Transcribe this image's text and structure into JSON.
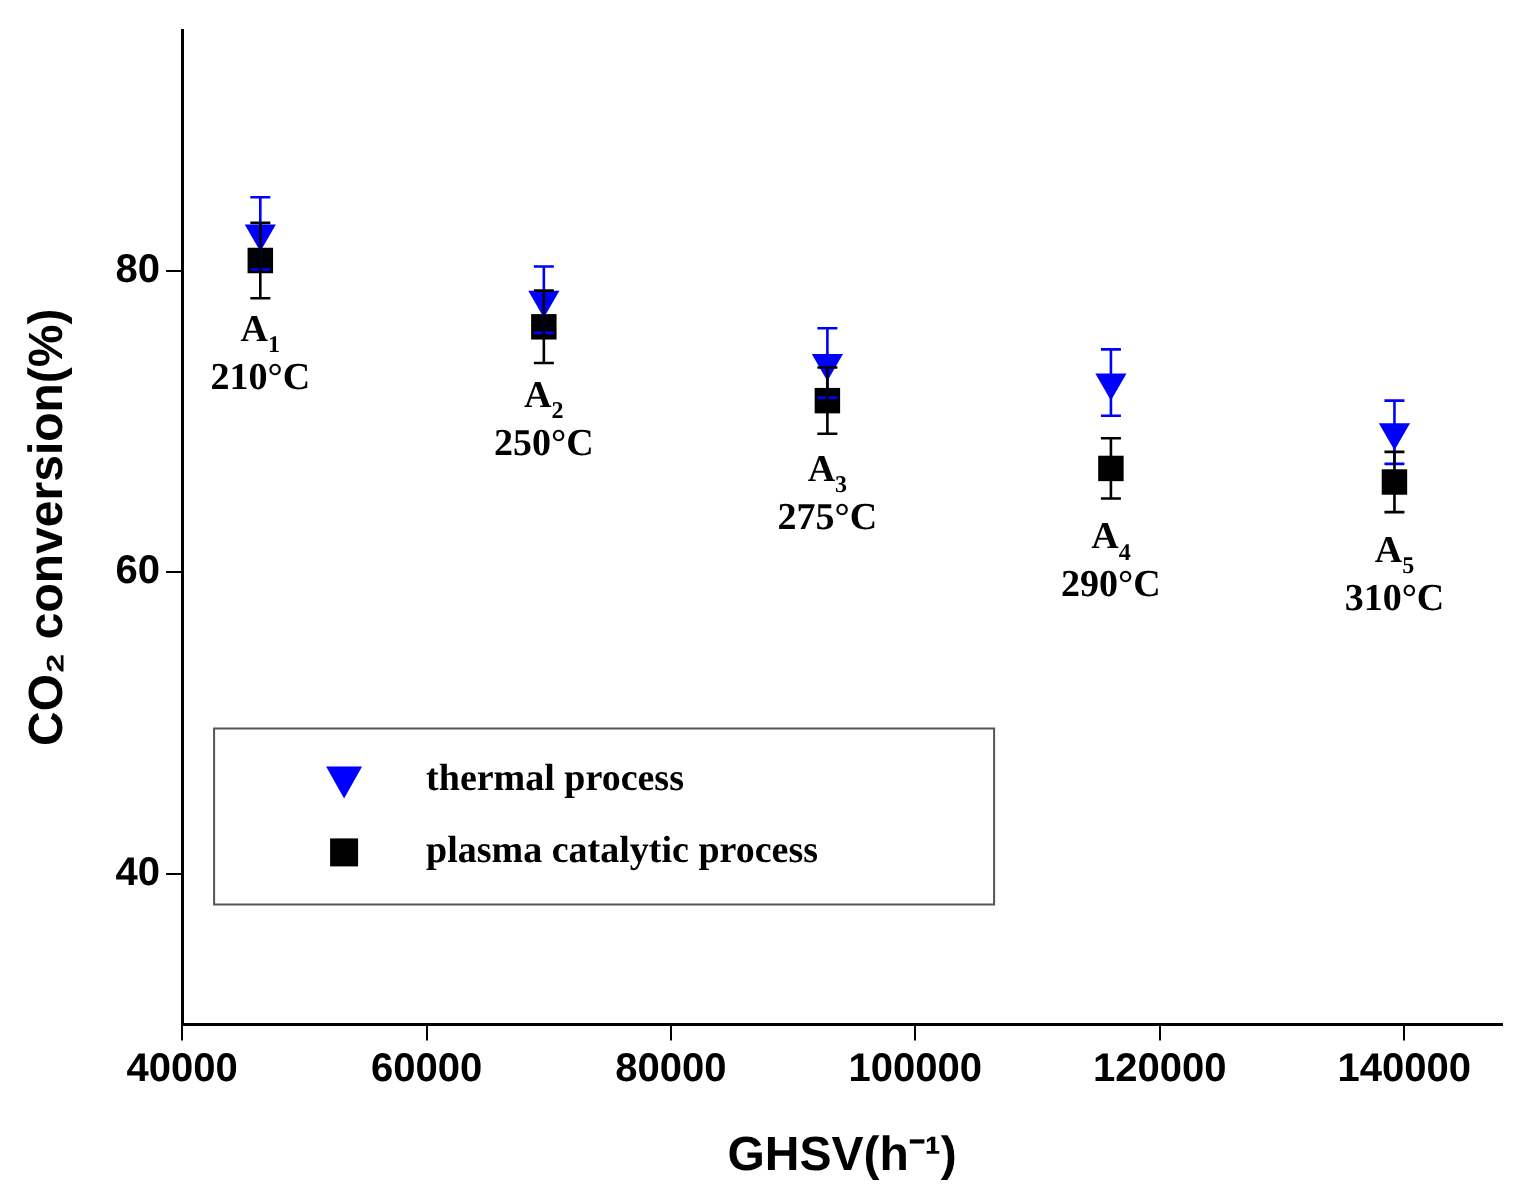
{
  "chart_data": {
    "type": "scatter",
    "xlabel": "GHSV(h⁻¹)",
    "ylabel": "CO₂ conversion(%)",
    "xlim": [
      40000,
      148000
    ],
    "xticks": [
      40000,
      60000,
      80000,
      100000,
      120000,
      140000
    ],
    "ylim": [
      30,
      96
    ],
    "yticks": [
      40,
      60,
      80
    ],
    "grid": false,
    "legend": "bottom left",
    "x": [
      46400,
      69600,
      92800,
      116000,
      139200
    ],
    "series": [
      {
        "name": "thermal process",
        "color": "#0000ff",
        "marker": "triangle",
        "values": [
          82.5,
          78.1,
          73.9,
          72.6,
          69.3
        ],
        "errors": [
          2.4,
          2.2,
          2.3,
          2.2,
          2.1
        ]
      },
      {
        "name": "plasma catalytic process",
        "color": "#000000",
        "marker": "square",
        "values": [
          80.7,
          76.3,
          71.4,
          66.9,
          66.0
        ],
        "errors": [
          2.5,
          2.4,
          2.2,
          2.0,
          2.0
        ]
      }
    ],
    "annotations": [
      {
        "text": "A$_{1}$\n210°C",
        "x": 46400,
        "y": 80.7
      },
      {
        "text": "A$_{2}$\n250°C",
        "x": 69600,
        "y": 76.3
      },
      {
        "text": "A$_{3}$\n275°C",
        "x": 92800,
        "y": 71.4
      },
      {
        "text": "A$_{4}$\n290°C",
        "x": 116000,
        "y": 66.9
      },
      {
        "text": "A$_{5}$\n310°C",
        "x": 139200,
        "y": 66.0
      }
    ]
  }
}
